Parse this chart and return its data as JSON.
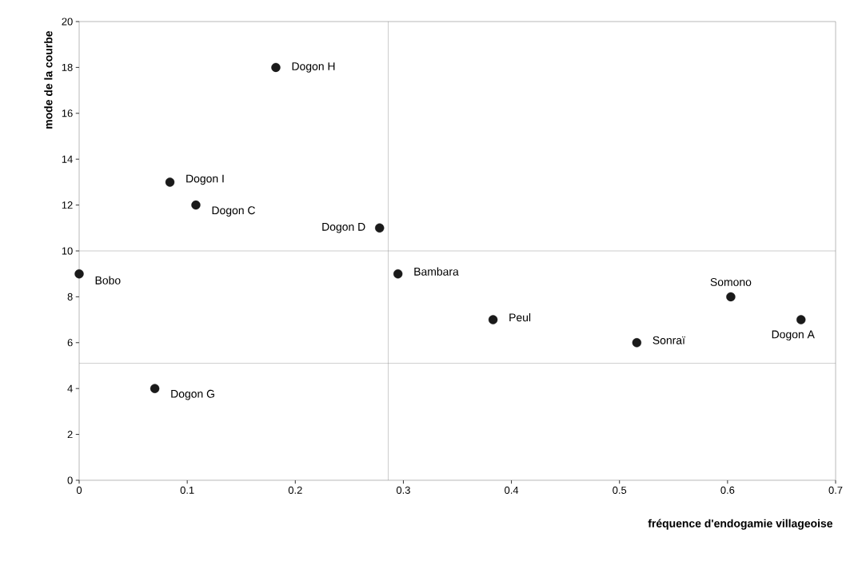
{
  "chart_data": {
    "type": "scatter",
    "xlabel": "fréquence d'endogamie villageoise",
    "ylabel": "mode de la courbe",
    "x": [
      0.182,
      0.084,
      0.108,
      0.278,
      0,
      0.295,
      0.383,
      0.603,
      0.668,
      0.516,
      0.07
    ],
    "values": [
      18,
      13,
      12,
      11,
      9,
      9,
      7,
      8,
      7,
      6,
      4
    ],
    "color": "#1a1a1a",
    "marker": "circle",
    "xlim": [
      0,
      0.7
    ],
    "xticks": [
      0,
      0.1,
      0.2,
      0.3,
      0.4,
      0.5,
      0.6,
      0.7
    ],
    "ylim": [
      0,
      20
    ],
    "yticks": [
      0,
      2,
      4,
      6,
      8,
      10,
      12,
      14,
      16,
      18,
      20
    ],
    "grid": false,
    "ref_lines": [
      {
        "axis": "x",
        "value": 0.286,
        "color": "#808080"
      },
      {
        "axis": "y",
        "value": 10.0,
        "color": "#808080"
      },
      {
        "axis": "y",
        "value": 5.1,
        "color": "#808080"
      }
    ],
    "annotations": [
      {
        "text": "Dogon H",
        "x": 0.182,
        "y": 18
      },
      {
        "text": "Dogon I",
        "x": 0.084,
        "y": 13
      },
      {
        "text": "Dogon C",
        "x": 0.108,
        "y": 12
      },
      {
        "text": "Dogon D",
        "x": 0.278,
        "y": 11
      },
      {
        "text": "Bobo",
        "x": 0,
        "y": 9
      },
      {
        "text": "Bambara",
        "x": 0.295,
        "y": 9
      },
      {
        "text": "Peul",
        "x": 0.383,
        "y": 7
      },
      {
        "text": "Somono",
        "x": 0.603,
        "y": 8
      },
      {
        "text": "Dogon A",
        "x": 0.668,
        "y": 7
      },
      {
        "text": "Sonraï",
        "x": 0.516,
        "y": 6
      },
      {
        "text": "Dogon G",
        "x": 0.07,
        "y": 4
      }
    ]
  }
}
